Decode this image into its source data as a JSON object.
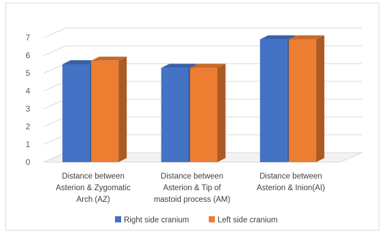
{
  "chart_data": {
    "type": "bar",
    "style": "3d-clustered-column",
    "categories": [
      [
        "Distance between",
        "Asterion & Zygomatic",
        "Arch (AZ)"
      ],
      [
        "Distance between",
        "Asterion & Tip of",
        "mastoid process (AM)"
      ],
      [
        "Distance between",
        "Asterion & Inion(AI)"
      ]
    ],
    "series": [
      {
        "name": "Right side cranium",
        "values": [
          5.5,
          5.3,
          6.9
        ],
        "color": "#4472c4"
      },
      {
        "name": "Left side cranium",
        "values": [
          5.7,
          5.3,
          6.9
        ],
        "color": "#ed7d31"
      }
    ],
    "ylim": [
      0,
      7
    ],
    "yticks": [
      0,
      1,
      2,
      3,
      4,
      5,
      6,
      7
    ],
    "grid": true,
    "legend": "bottom"
  }
}
